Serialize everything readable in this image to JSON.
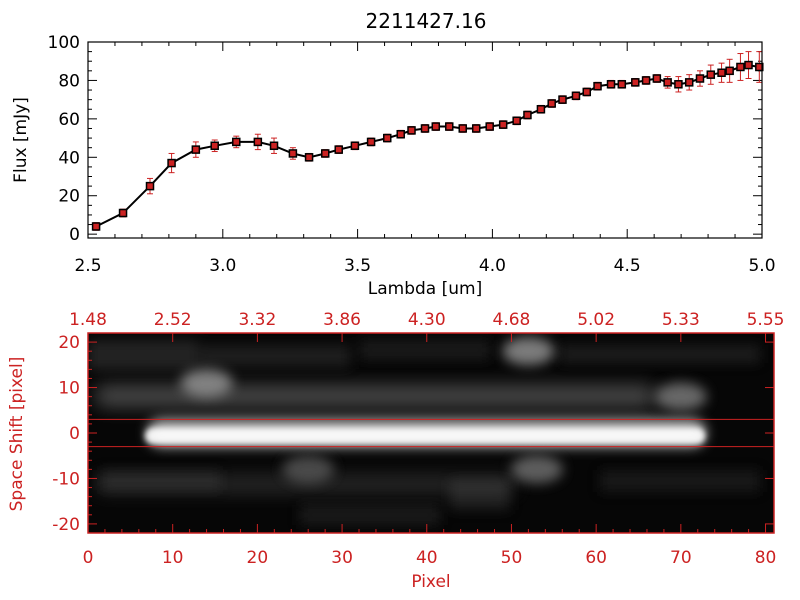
{
  "chart_data": [
    {
      "type": "line",
      "title": "2211427.16",
      "xlabel": "Lambda [um]",
      "ylabel": "Flux [mJy]",
      "xlim": [
        2.5,
        5.0
      ],
      "ylim": [
        -2,
        100
      ],
      "xticks": [
        "2.5",
        "3.0",
        "3.5",
        "4.0",
        "4.5",
        "5.0"
      ],
      "yticks": [
        "0",
        "20",
        "40",
        "60",
        "80",
        "100"
      ],
      "grid": false,
      "colors": {
        "line": "#000000",
        "marker": "#cc2222",
        "errorbar": "#cc2222"
      },
      "series": [
        {
          "x": [
            2.53,
            2.63,
            2.73,
            2.81,
            2.9,
            2.97,
            3.05,
            3.13,
            3.19,
            3.26,
            3.32,
            3.38,
            3.43,
            3.49,
            3.55,
            3.61,
            3.66,
            3.7,
            3.75,
            3.79,
            3.84,
            3.89,
            3.94,
            3.99,
            4.04,
            4.09,
            4.13,
            4.18,
            4.22,
            4.26,
            4.31,
            4.35,
            4.39,
            4.44,
            4.48,
            4.53,
            4.57,
            4.61,
            4.65,
            4.69,
            4.73,
            4.77,
            4.81,
            4.85,
            4.88,
            4.92,
            4.95,
            4.99
          ],
          "y": [
            4,
            11,
            25,
            37,
            44,
            46,
            48,
            48,
            46,
            42,
            40,
            42,
            44,
            46,
            48,
            50,
            52,
            54,
            55,
            56,
            56,
            55,
            55,
            56,
            57,
            59,
            62,
            65,
            68,
            70,
            72,
            74,
            77,
            78,
            78,
            79,
            80,
            81,
            79,
            78,
            79,
            81,
            83,
            84,
            85,
            87,
            88,
            87
          ],
          "err": [
            2,
            2,
            4,
            5,
            4,
            3,
            3,
            4,
            4,
            3,
            2,
            2,
            2,
            2,
            2,
            2,
            2,
            2,
            2,
            2,
            2,
            2,
            2,
            2,
            2,
            2,
            2,
            2,
            2,
            2,
            2,
            2,
            2,
            2,
            2,
            2,
            2,
            2,
            3,
            4,
            4,
            4,
            5,
            5,
            6,
            7,
            7,
            8
          ]
        }
      ]
    },
    {
      "type": "heatmap",
      "xlabel": "Pixel",
      "ylabel": "Space Shift [pixel]",
      "xlim": [
        0,
        81
      ],
      "ylim": [
        -22,
        22
      ],
      "xticks": [
        "0",
        "10",
        "20",
        "30",
        "40",
        "50",
        "60",
        "70",
        "80"
      ],
      "yticks": [
        "-20",
        "-10",
        "0",
        "10",
        "20"
      ],
      "top_axis_ticks": [
        "1.48",
        "2.52",
        "3.32",
        "3.86",
        "4.30",
        "4.68",
        "5.02",
        "5.33",
        "5.55"
      ],
      "extraction_window": [
        -3,
        3
      ],
      "colormap": "grayscale",
      "colors": {
        "axes": "#cc2222",
        "window_lines": "#cc2222"
      },
      "features": [
        {
          "kind": "trace",
          "x": [
            7,
            73
          ],
          "y": 0,
          "intensity": 1.0
        },
        {
          "kind": "blob",
          "x": 14,
          "y": 11,
          "intensity": 0.6
        },
        {
          "kind": "blob",
          "x": 52,
          "y": 18,
          "intensity": 0.6
        },
        {
          "kind": "blob",
          "x": 70,
          "y": 8,
          "intensity": 0.5
        },
        {
          "kind": "blob",
          "x": 53,
          "y": -8,
          "intensity": 0.45
        },
        {
          "kind": "blob",
          "x": 26,
          "y": -8,
          "intensity": 0.35
        }
      ]
    }
  ]
}
